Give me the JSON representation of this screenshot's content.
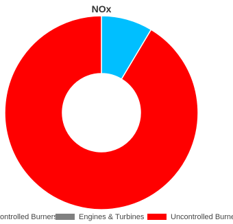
{
  "chart_data": {
    "type": "pie",
    "title": "NOx",
    "donut": true,
    "categories": [
      "Controlled Burners",
      "Engines & Turbines",
      "Uncontrolled Burners"
    ],
    "values": [
      8.6,
      0,
      91.4
    ],
    "colors": {
      "Controlled Burners": "#00bfff",
      "Engines & Turbines": "#808080",
      "Uncontrolled Burners": "#ff0000"
    },
    "legend": {
      "position": "bottom",
      "entries": [
        {
          "label": "Controlled Burners",
          "display": "ontrolled Burners",
          "color": "#00bfff"
        },
        {
          "label": "Engines & Turbines",
          "display": "Engines & Turbines",
          "color": "#808080"
        },
        {
          "label": "Uncontrolled Burners",
          "display": "Uncontrolled Burners",
          "color": "#ff0000"
        }
      ]
    }
  }
}
